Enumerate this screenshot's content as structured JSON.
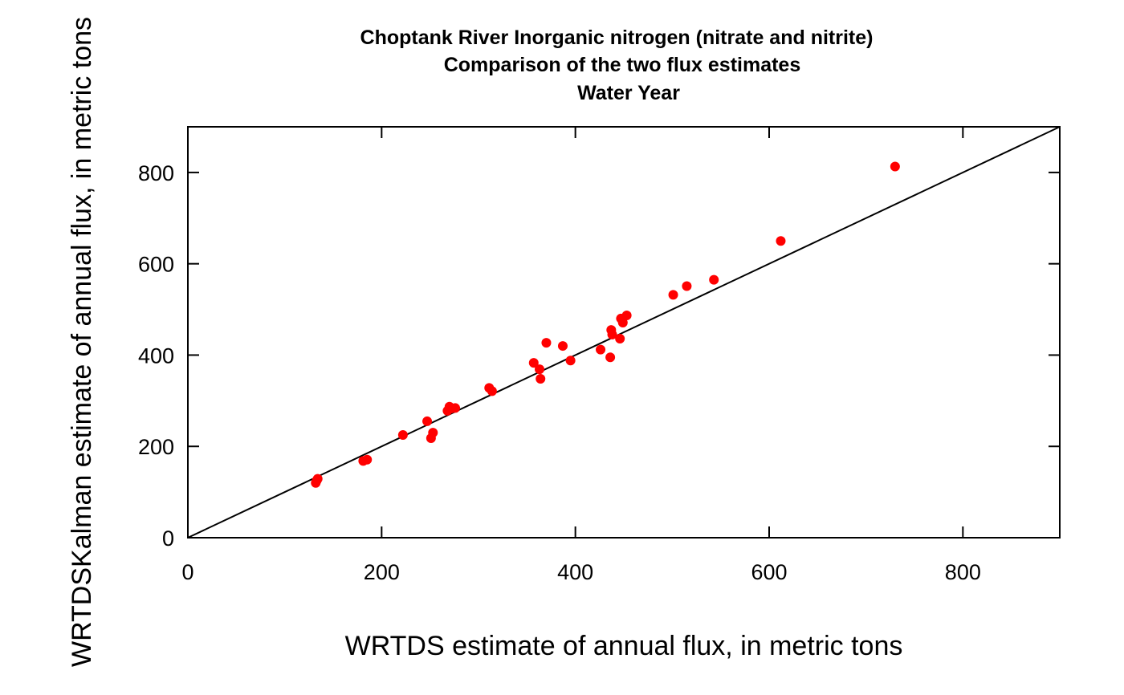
{
  "chart_data": {
    "type": "scatter",
    "title_lines": [
      "Choptank River  Inorganic nitrogen (nitrate and nitrite)",
      "Comparison of the two flux estimates",
      "Water Year"
    ],
    "xlabel": "WRTDS estimate of annual flux, in metric tons",
    "ylabel": "WRTDSKalman estimate of annual flux, in metric tons",
    "xlim": [
      0,
      900
    ],
    "ylim": [
      0,
      900
    ],
    "x_ticks": [
      0,
      200,
      400,
      600,
      800
    ],
    "y_ticks": [
      0,
      200,
      400,
      600,
      800
    ],
    "x_tick_labels": [
      "0",
      "200",
      "400",
      "600",
      "800"
    ],
    "y_tick_labels": [
      "0",
      "200",
      "400",
      "600",
      "800"
    ],
    "grid": false,
    "reference_line": {
      "type": "1:1",
      "from": [
        0,
        0
      ],
      "to": [
        900,
        900
      ]
    },
    "point_color": "#ff0000",
    "points": [
      [
        132,
        120
      ],
      [
        133,
        125
      ],
      [
        134,
        129
      ],
      [
        181,
        168
      ],
      [
        185,
        171
      ],
      [
        222,
        225
      ],
      [
        247,
        255
      ],
      [
        251,
        218
      ],
      [
        253,
        230
      ],
      [
        268,
        278
      ],
      [
        270,
        287
      ],
      [
        272,
        283
      ],
      [
        276,
        284
      ],
      [
        311,
        328
      ],
      [
        314,
        321
      ],
      [
        357,
        383
      ],
      [
        363,
        369
      ],
      [
        364,
        348
      ],
      [
        370,
        427
      ],
      [
        387,
        420
      ],
      [
        395,
        388
      ],
      [
        426,
        412
      ],
      [
        436,
        395
      ],
      [
        437,
        455
      ],
      [
        438,
        445
      ],
      [
        446,
        436
      ],
      [
        447,
        480
      ],
      [
        449,
        471
      ],
      [
        453,
        487
      ],
      [
        501,
        532
      ],
      [
        515,
        551
      ],
      [
        543,
        565
      ],
      [
        612,
        650
      ],
      [
        730,
        813
      ]
    ]
  }
}
